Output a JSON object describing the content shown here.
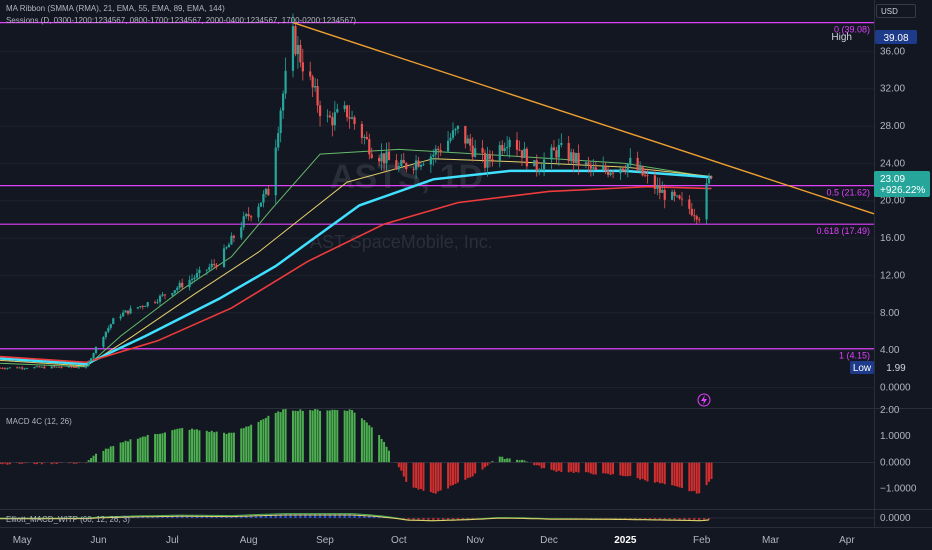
{
  "header": {
    "indicator_1": "MA Ribbon (SMMA (RMA), 21, EMA, 55, EMA, 89, EMA, 144)",
    "indicator_2": "Sessions (D, 0300-1200:1234567, 0800-1700:1234567, 2000-0400:1234567, 1700-0200:1234567)",
    "currency": "USD"
  },
  "watermark": {
    "symbol": "ASTS, 1D",
    "company": "AST SpaceMobile, Inc."
  },
  "macd_pane": {
    "label": "MACD 4C (12, 26)",
    "ticks": [
      "2.00",
      "1.0000",
      "0.0000",
      "−1.0000"
    ]
  },
  "lower_pane": {
    "label": "Elliott_MACD_WITP (60, 12, 26, 3)",
    "ticks": [
      "0.0000"
    ]
  },
  "price_axis": {
    "ticks": [
      "36.00",
      "32.00",
      "28.00",
      "24.00",
      "20.00",
      "16.00",
      "12.00",
      "8.00",
      "4.00",
      "0.0000"
    ]
  },
  "time_axis": {
    "labels": [
      "May",
      "Jun",
      "Jul",
      "Aug",
      "Sep",
      "Oct",
      "Nov",
      "Dec",
      "2025",
      "Feb",
      "Mar",
      "Apr"
    ]
  },
  "price_labels": {
    "high_label": "High",
    "high_value": "39.08",
    "low_label": "Low",
    "low_value": "1.99",
    "last_price": "23.09",
    "change": "+926.22%"
  },
  "fib_levels": [
    {
      "text": "0 (39.08)",
      "price": 39.08
    },
    {
      "text": "0.5 (21.62)",
      "price": 21.62
    },
    {
      "text": "0.618 (17.49)",
      "price": 17.49
    },
    {
      "text": "1 (4.15)",
      "price": 4.15
    }
  ],
  "colors": {
    "background": "#131722",
    "fib": "#e040fb",
    "trendline": "#f0a030",
    "up": "#26a69a",
    "down": "#ef5350",
    "macd_up": "#4caf50",
    "macd_down": "#d32f2f",
    "ma21": "#66bb6a",
    "ma55": "#e6d06a",
    "ma89": "#40e0ff",
    "ma144": "#ef3b3b"
  },
  "chart_data": {
    "type": "candlestick",
    "x_type": "date",
    "x_range": [
      "2024-04-22",
      "2025-04-12"
    ],
    "y_range": [
      -2.2,
      41.5
    ],
    "trendline": {
      "from": [
        "2024-08-19",
        39.08
      ],
      "to": [
        "2025-04-12",
        18.6
      ]
    },
    "price_path": [
      [
        "2024-04-22",
        2.1
      ],
      [
        "2024-05-27",
        2.2
      ],
      [
        "2024-06-01",
        4.8
      ],
      [
        "2024-06-08",
        7.6
      ],
      [
        "2024-06-25",
        9.5
      ],
      [
        "2024-07-08",
        11.5
      ],
      [
        "2024-07-20",
        13.5
      ],
      [
        "2024-07-29",
        17.5
      ],
      [
        "2024-08-09",
        21.0
      ],
      [
        "2024-08-14",
        30.0
      ],
      [
        "2024-08-19",
        37.5
      ],
      [
        "2024-08-24",
        34.0
      ],
      [
        "2024-09-01",
        28.5
      ],
      [
        "2024-09-10",
        29.5
      ],
      [
        "2024-09-20",
        25.5
      ],
      [
        "2024-10-01",
        23.5
      ],
      [
        "2024-10-15",
        25.0
      ],
      [
        "2024-10-25",
        27.5
      ],
      [
        "2024-11-05",
        24.0
      ],
      [
        "2024-11-15",
        27.0
      ],
      [
        "2024-11-25",
        23.5
      ],
      [
        "2024-12-05",
        25.5
      ],
      [
        "2024-12-20",
        23.0
      ],
      [
        "2025-01-03",
        24.0
      ],
      [
        "2025-01-15",
        21.0
      ],
      [
        "2025-01-25",
        19.5
      ],
      [
        "2025-01-31",
        18.5
      ],
      [
        "2025-02-05",
        23.09
      ]
    ],
    "ma_ribbon": [
      {
        "name": "SMMA (RMA) 21",
        "points": [
          [
            "2024-04-22",
            2.6
          ],
          [
            "2024-05-27",
            2.2
          ],
          [
            "2024-06-10",
            5.5
          ],
          [
            "2024-07-05",
            10.5
          ],
          [
            "2024-07-25",
            14.0
          ],
          [
            "2024-08-10",
            19.0
          ],
          [
            "2024-08-30",
            25.0
          ],
          [
            "2024-10-01",
            25.5
          ],
          [
            "2024-11-15",
            24.8
          ],
          [
            "2025-01-01",
            24.0
          ],
          [
            "2025-02-05",
            22.5
          ]
        ]
      },
      {
        "name": "EMA 55",
        "points": [
          [
            "2024-04-22",
            2.9
          ],
          [
            "2024-05-27",
            2.3
          ],
          [
            "2024-06-15",
            5.5
          ],
          [
            "2024-07-10",
            10.0
          ],
          [
            "2024-08-05",
            14.5
          ],
          [
            "2024-09-10",
            22.0
          ],
          [
            "2024-10-15",
            24.5
          ],
          [
            "2024-11-15",
            24.2
          ],
          [
            "2025-01-01",
            23.6
          ],
          [
            "2025-02-05",
            22.6
          ]
        ]
      },
      {
        "name": "EMA 89",
        "points": [
          [
            "2024-04-22",
            3.1
          ],
          [
            "2024-05-27",
            2.5
          ],
          [
            "2024-06-20",
            5.5
          ],
          [
            "2024-07-20",
            9.5
          ],
          [
            "2024-08-12",
            13.0
          ],
          [
            "2024-09-15",
            19.5
          ],
          [
            "2024-10-15",
            22.3
          ],
          [
            "2024-11-15",
            23.2
          ],
          [
            "2025-01-01",
            23.2
          ],
          [
            "2025-02-05",
            22.5
          ]
        ]
      },
      {
        "name": "EMA 144",
        "points": [
          [
            "2024-04-22",
            3.3
          ],
          [
            "2024-05-27",
            2.7
          ],
          [
            "2024-06-25",
            5.0
          ],
          [
            "2024-07-25",
            8.5
          ],
          [
            "2024-08-25",
            13.5
          ],
          [
            "2024-09-25",
            17.5
          ],
          [
            "2024-10-25",
            19.8
          ],
          [
            "2024-12-01",
            21.0
          ],
          [
            "2025-01-10",
            21.5
          ],
          [
            "2025-02-05",
            21.3
          ]
        ]
      }
    ],
    "macd_range": [
      -1.7,
      2.0
    ],
    "macd_path": [
      [
        "2024-04-22",
        -0.05
      ],
      [
        "2024-05-27",
        -0.02
      ],
      [
        "2024-06-01",
        0.4
      ],
      [
        "2024-06-15",
        0.9
      ],
      [
        "2024-07-05",
        1.3
      ],
      [
        "2024-07-25",
        1.1
      ],
      [
        "2024-08-08",
        1.7
      ],
      [
        "2024-08-15",
        2.0
      ],
      [
        "2024-09-12",
        2.0
      ],
      [
        "2024-09-22",
        1.2
      ],
      [
        "2024-09-29",
        0.2
      ],
      [
        "2024-10-05",
        -0.9
      ],
      [
        "2024-10-15",
        -1.2
      ],
      [
        "2024-10-25",
        -0.8
      ],
      [
        "2024-11-02",
        -0.4
      ],
      [
        "2024-11-10",
        0.2
      ],
      [
        "2024-11-20",
        0.1
      ],
      [
        "2024-12-01",
        -0.3
      ],
      [
        "2024-12-15",
        -0.4
      ],
      [
        "2025-01-01",
        -0.5
      ],
      [
        "2025-01-20",
        -0.9
      ],
      [
        "2025-02-01",
        -1.2
      ],
      [
        "2025-02-05",
        -0.6
      ]
    ]
  }
}
